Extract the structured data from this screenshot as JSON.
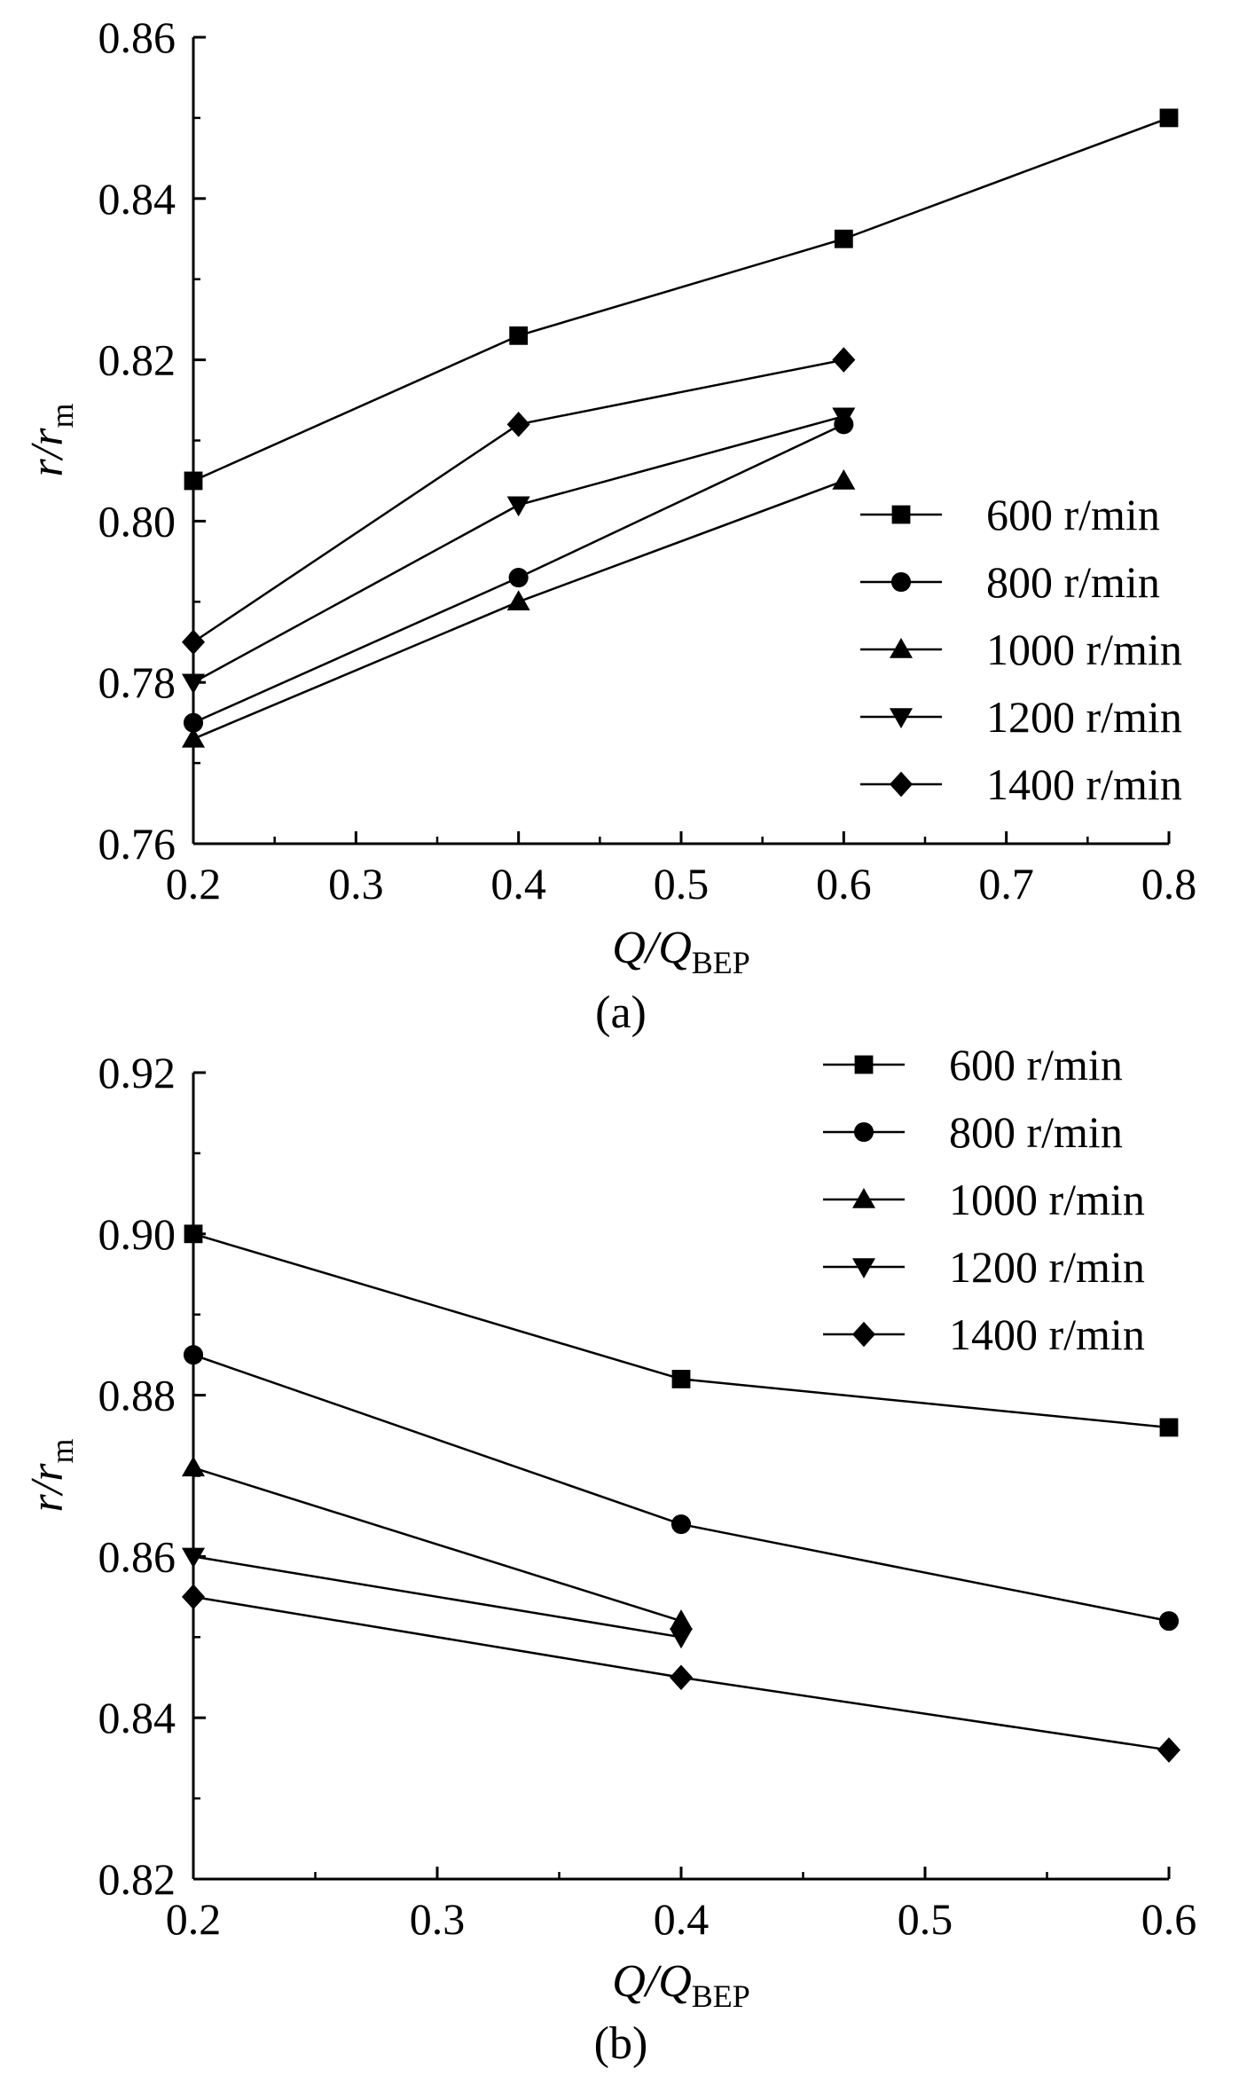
{
  "chart_data": [
    {
      "type": "line",
      "panel_label": "(a)",
      "xlabel": {
        "main": "Q",
        "sep": "/",
        "main2": "Q",
        "sub": "BEP"
      },
      "ylabel": {
        "main": "r",
        "sep": "/",
        "main2": "r",
        "sub": "m"
      },
      "xlim": [
        0.2,
        0.8
      ],
      "ylim": [
        0.76,
        0.86
      ],
      "xticks": [
        0.2,
        0.3,
        0.4,
        0.5,
        0.6,
        0.7,
        0.8
      ],
      "xtick_labels": [
        "0.2",
        "0.3",
        "0.4",
        "0.5",
        "0.6",
        "0.7",
        "0.8"
      ],
      "yticks": [
        0.76,
        0.78,
        0.8,
        0.82,
        0.84,
        0.86
      ],
      "ytick_labels": [
        "0.76",
        "0.78",
        "0.80",
        "0.82",
        "0.84",
        "0.86"
      ],
      "legend_position": "right",
      "series": [
        {
          "name": "600 r/min",
          "marker": "square",
          "x": [
            0.2,
            0.4,
            0.6,
            0.8
          ],
          "values": [
            0.805,
            0.823,
            0.835,
            0.85
          ]
        },
        {
          "name": "800 r/min",
          "marker": "circle",
          "x": [
            0.2,
            0.4,
            0.6
          ],
          "values": [
            0.775,
            0.793,
            0.812
          ]
        },
        {
          "name": "1000 r/min",
          "marker": "triangle-up",
          "x": [
            0.2,
            0.4,
            0.6
          ],
          "values": [
            0.773,
            0.79,
            0.805
          ]
        },
        {
          "name": "1200 r/min",
          "marker": "triangle-down",
          "x": [
            0.2,
            0.4,
            0.6
          ],
          "values": [
            0.78,
            0.802,
            0.813
          ]
        },
        {
          "name": "1400 r/min",
          "marker": "diamond",
          "x": [
            0.2,
            0.4,
            0.6
          ],
          "values": [
            0.785,
            0.812,
            0.82
          ]
        }
      ]
    },
    {
      "type": "line",
      "panel_label": "(b)",
      "xlabel": {
        "main": "Q",
        "sep": "/",
        "main2": "Q",
        "sub": "BEP"
      },
      "ylabel": {
        "main": "r",
        "sep": "/",
        "main2": "r",
        "sub": "m"
      },
      "xlim": [
        0.2,
        0.6
      ],
      "ylim": [
        0.82,
        0.92
      ],
      "xticks": [
        0.2,
        0.3,
        0.4,
        0.5,
        0.6
      ],
      "xtick_labels": [
        "0.2",
        "0.3",
        "0.4",
        "0.5",
        "0.6"
      ],
      "yticks": [
        0.82,
        0.84,
        0.86,
        0.88,
        0.9,
        0.92
      ],
      "ytick_labels": [
        "0.82",
        "0.84",
        "0.86",
        "0.88",
        "0.90",
        "0.92"
      ],
      "legend_position": "top-right",
      "series": [
        {
          "name": "600 r/min",
          "marker": "square",
          "x": [
            0.2,
            0.4,
            0.6
          ],
          "values": [
            0.9,
            0.882,
            0.876
          ]
        },
        {
          "name": "800 r/min",
          "marker": "circle",
          "x": [
            0.2,
            0.4,
            0.6
          ],
          "values": [
            0.885,
            0.864,
            0.852
          ]
        },
        {
          "name": "1000 r/min",
          "marker": "triangle-up",
          "x": [
            0.2,
            0.4
          ],
          "values": [
            0.871,
            0.852
          ]
        },
        {
          "name": "1200 r/min",
          "marker": "triangle-down",
          "x": [
            0.2,
            0.4
          ],
          "values": [
            0.86,
            0.85
          ]
        },
        {
          "name": "1400 r/min",
          "marker": "diamond",
          "x": [
            0.2,
            0.4,
            0.6
          ],
          "values": [
            0.855,
            0.845,
            0.836
          ]
        }
      ]
    }
  ]
}
